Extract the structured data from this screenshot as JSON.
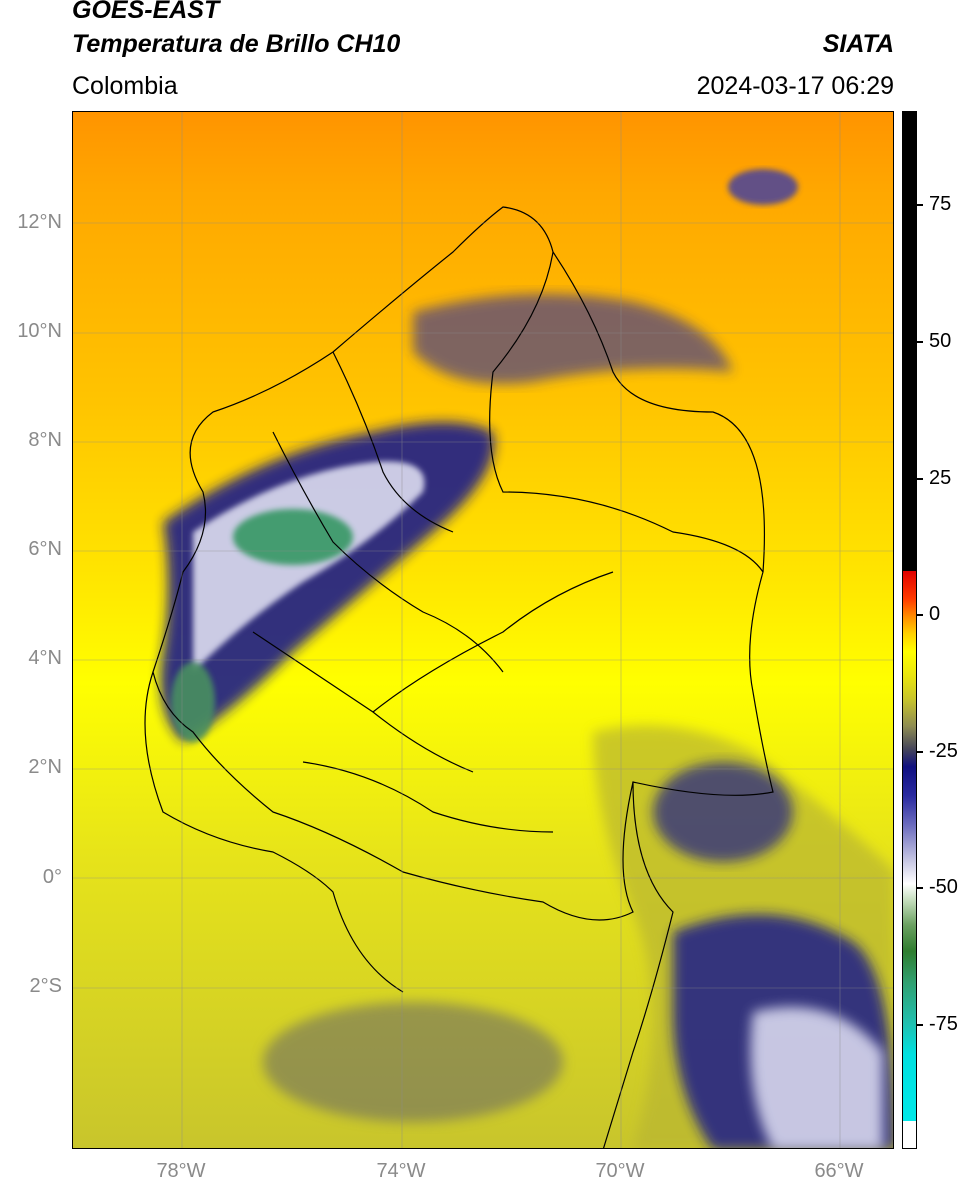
{
  "header": {
    "title_line1": "GOES-EAST",
    "title_line2": "Temperatura de Brillo CH10",
    "region": "Colombia",
    "agency": "SIATA",
    "datetime": "2024-03-17 06:29"
  },
  "map": {
    "lat_labels": [
      "12°N",
      "10°N",
      "8°N",
      "6°N",
      "4°N",
      "2°N",
      "0°",
      "2°S"
    ],
    "lon_labels": [
      "78°W",
      "74°W",
      "70°W",
      "66°W"
    ],
    "lon_range": [
      -80,
      -65
    ],
    "lat_range": [
      -5,
      14
    ]
  },
  "colorbar": {
    "labels": [
      "75",
      "50",
      "25",
      "0",
      "-25",
      "-50",
      "-75"
    ],
    "range": [
      -100,
      90
    ],
    "colors": {
      "warm": "#ff8c00",
      "neutral": "#ffff00",
      "cool": "#c9c62a",
      "cold": "#101080",
      "very_cold": "#2f7d2f",
      "saturated": "#000000"
    }
  }
}
